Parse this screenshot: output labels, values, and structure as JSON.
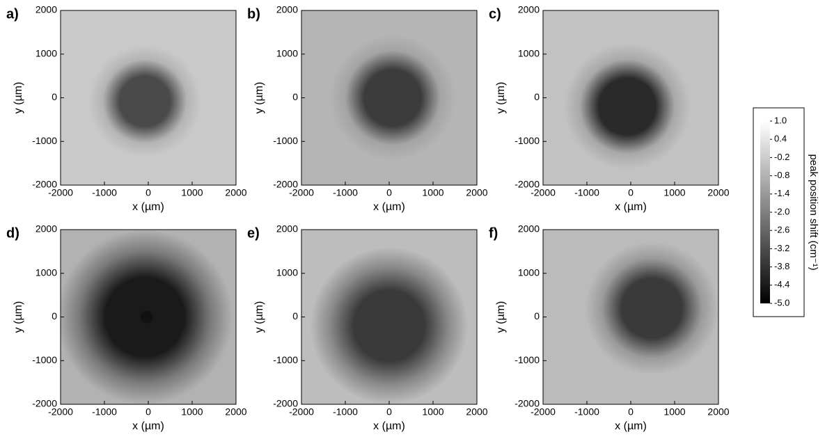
{
  "chart_data": [
    {
      "type": "heatmap",
      "panel": "a)",
      "xlabel": "x (µm)",
      "ylabel": "y (µm)",
      "xlim": [
        -2000,
        2000
      ],
      "ylim": [
        -2000,
        2000
      ],
      "xticks": [
        -2000,
        -1000,
        0,
        1000,
        2000
      ],
      "yticks": [
        -2000,
        -1000,
        0,
        1000,
        2000
      ]
    },
    {
      "type": "heatmap",
      "panel": "b)",
      "xlabel": "x (µm)",
      "ylabel": "y (µm)",
      "xlim": [
        -2000,
        2000
      ],
      "ylim": [
        -2000,
        2000
      ],
      "xticks": [
        -2000,
        -1000,
        0,
        1000,
        2000
      ],
      "yticks": [
        -2000,
        -1000,
        0,
        1000,
        2000
      ]
    },
    {
      "type": "heatmap",
      "panel": "c)",
      "xlabel": "x (µm)",
      "ylabel": "y (µm)",
      "xlim": [
        -2000,
        2000
      ],
      "ylim": [
        -2000,
        2000
      ],
      "xticks": [
        -2000,
        -1000,
        0,
        1000,
        2000
      ],
      "yticks": [
        -2000,
        -1000,
        0,
        1000,
        2000
      ]
    },
    {
      "type": "heatmap",
      "panel": "d)",
      "xlabel": "x (µm)",
      "ylabel": "y (µm)",
      "xlim": [
        -2000,
        2000
      ],
      "ylim": [
        -2000,
        2000
      ],
      "xticks": [
        -2000,
        -1000,
        0,
        1000,
        2000
      ],
      "yticks": [
        -2000,
        -1000,
        0,
        1000,
        2000
      ]
    },
    {
      "type": "heatmap",
      "panel": "e)",
      "xlabel": "x (µm)",
      "ylabel": "y (µm)",
      "xlim": [
        -2000,
        2000
      ],
      "ylim": [
        -2000,
        2000
      ],
      "xticks": [
        -2000,
        -1000,
        0,
        1000,
        2000
      ],
      "yticks": [
        -2000,
        -1000,
        0,
        1000,
        2000
      ]
    },
    {
      "type": "heatmap",
      "panel": "f)",
      "xlabel": "x (µm)",
      "ylabel": "y (µm)",
      "xlim": [
        -2000,
        2000
      ],
      "ylim": [
        -2000,
        2000
      ],
      "xticks": [
        -2000,
        -1000,
        0,
        1000,
        2000
      ],
      "yticks": [
        -2000,
        -1000,
        0,
        1000,
        2000
      ]
    }
  ],
  "colorbar": {
    "label": "peak position shift (cm⁻¹)",
    "clim": [
      -5,
      1
    ],
    "ticks": [
      {
        "value": 1,
        "label": "1.0"
      },
      0.4,
      -0.2,
      -0.8,
      -1.4,
      {
        "value": -2,
        "label": "-2.0"
      },
      -2.6,
      -3.2,
      -3.8,
      -4.4,
      {
        "value": -5,
        "label": "-5.0"
      }
    ]
  }
}
